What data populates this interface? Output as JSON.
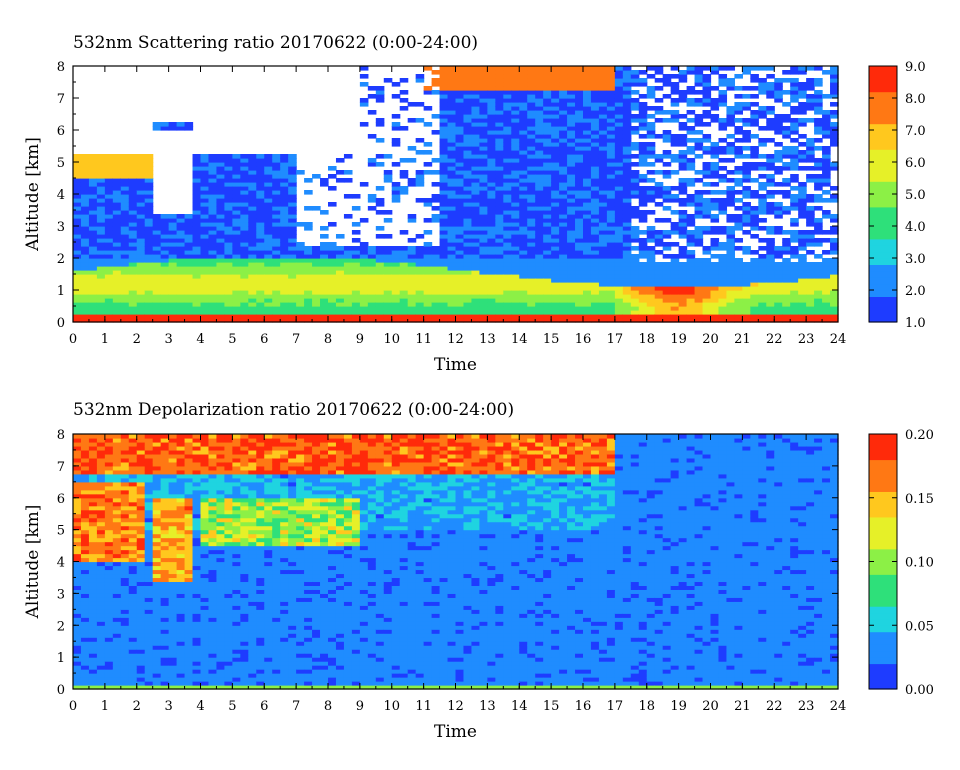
{
  "chart_data": [
    {
      "type": "heatmap",
      "title": "532nm Scattering ratio  20170622 (0:00-24:00)",
      "xlabel": "Time",
      "ylabel": "Altitude [km]",
      "xlim": [
        0,
        24
      ],
      "ylim": [
        0,
        8
      ],
      "x_ticks": [
        0,
        1,
        2,
        3,
        4,
        5,
        6,
        7,
        8,
        9,
        10,
        11,
        12,
        13,
        14,
        15,
        16,
        17,
        18,
        19,
        20,
        21,
        22,
        23,
        24
      ],
      "y_ticks": [
        0,
        1,
        2,
        3,
        4,
        5,
        6,
        7,
        8
      ],
      "colorbar": {
        "min": 1.0,
        "max": 9.0,
        "ticks": [
          "1.0",
          "2.0",
          "3.0",
          "4.0",
          "5.0",
          "6.0",
          "7.0",
          "8.0",
          "9.0"
        ],
        "colors": [
          "#1e3cff",
          "#1f8cff",
          "#1fd4e0",
          "#2ee07a",
          "#8cf046",
          "#e6f028",
          "#ffc81e",
          "#ff7814",
          "#ff2a0a"
        ]
      }
    },
    {
      "type": "heatmap",
      "title": "532nm Depolarization ratio  20170622 (0:00-24:00)",
      "xlabel": "Time",
      "ylabel": "Altitude [km]",
      "xlim": [
        0,
        24
      ],
      "ylim": [
        0,
        8
      ],
      "x_ticks": [
        0,
        1,
        2,
        3,
        4,
        5,
        6,
        7,
        8,
        9,
        10,
        11,
        12,
        13,
        14,
        15,
        16,
        17,
        18,
        19,
        20,
        21,
        22,
        23,
        24
      ],
      "y_ticks": [
        0,
        1,
        2,
        3,
        4,
        5,
        6,
        7,
        8
      ],
      "colorbar": {
        "min": 0.0,
        "max": 0.2,
        "ticks": [
          "0.00",
          "0.05",
          "0.10",
          "0.15",
          "0.20"
        ],
        "colors": [
          "#1e3cff",
          "#1f8cff",
          "#1fd4e0",
          "#2ee07a",
          "#8cf046",
          "#e6f028",
          "#ffc81e",
          "#ff7814",
          "#ff2a0a"
        ]
      }
    }
  ]
}
